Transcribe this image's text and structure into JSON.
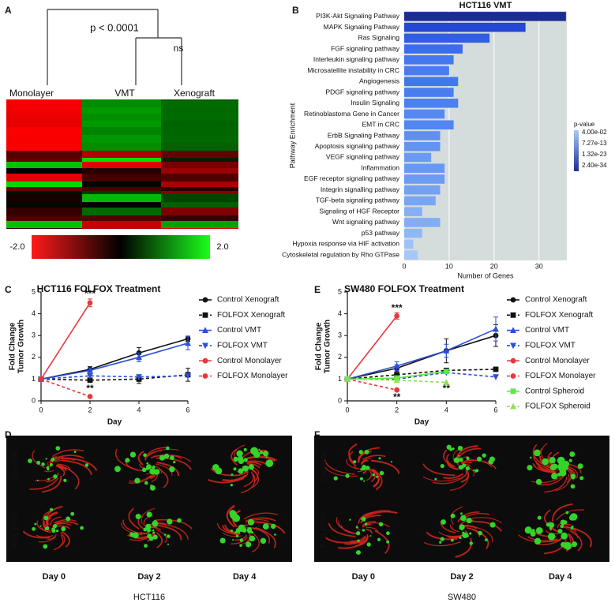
{
  "figure": {
    "panel_labels": [
      "A",
      "B",
      "C",
      "D",
      "E",
      "F"
    ],
    "heatmap": {
      "p_label": "p < 0.0001",
      "ns_label": "ns",
      "columns": [
        "Monolayer",
        "VMT",
        "Xenograft"
      ],
      "scale_min": "-2.0",
      "scale_max": "2.0"
    },
    "images": [
      {
        "rows": [
          "Control",
          "FOLFOX"
        ],
        "days": [
          "Day 0",
          "Day 2",
          "Day 4"
        ],
        "cell_line": "HCT116"
      },
      {
        "rows": [
          "Control",
          "FOLFOX"
        ],
        "days": [
          "Day 0",
          "Day 2",
          "Day 4"
        ],
        "cell_line": "SW480"
      }
    ]
  },
  "chart_data": [
    {
      "type": "barh",
      "title": "HCT116 VMT",
      "categories": [
        "PI3K-Akt Signaling Pathway",
        "MAPK Signaling Pathway",
        "Ras Signaling",
        "FGF signaling pathway",
        "Interleukin signaling pathway",
        "Microsatellite instability in CRC",
        "Angiogenesis",
        "PDGF signaling pathway",
        "Insulin Signaling",
        "Retinoblastoma Gene in Cancer",
        "EMT in CRC",
        "ErbB Signaling Pathway",
        "Apoptosis signaling pathway",
        "VEGF signaling pathway",
        "Inflammation",
        "EGF receptor signaling pathway",
        "Integrin signalling pathway",
        "TGF-beta signaling pathway",
        "Signaling of HGF Receptor",
        "Wnt signaling pathway",
        "p53 pathway",
        "Hypoxia response via HIF activation",
        "Cytoskeletal regulation by Rho GTPase"
      ],
      "values": [
        36,
        27,
        19,
        13,
        11,
        10,
        12,
        11,
        12,
        9,
        11,
        8,
        8,
        6,
        9,
        9,
        8,
        7,
        4,
        8,
        4,
        2,
        3
      ],
      "colors": [
        "#1c2c92",
        "#2447d6",
        "#2f5de4",
        "#3a6cec",
        "#4577ee",
        "#4a7cef",
        "#4377ee",
        "#4a7def",
        "#4d80ef",
        "#5588f0",
        "#5286f0",
        "#5e8ff1",
        "#6394f2",
        "#6a9af3",
        "#6899f2",
        "#6b9bf2",
        "#74a2f3",
        "#79a6f4",
        "#86b0f5",
        "#82adf4",
        "#8fb7f6",
        "#9ec1f7",
        "#a6c7f8"
      ],
      "xlim": [
        0,
        36.2
      ],
      "xticks": [
        0,
        10,
        20,
        30
      ],
      "xlabel": "Number of Genes",
      "ylabel": "Pathway Enrichment",
      "legend_title": "p-value",
      "legend_ticks": [
        "4.00e-02",
        "7.27e-13",
        "1.32e-23",
        "2.40e-34"
      ]
    },
    {
      "type": "line",
      "title": "HCT116 FOLFOX Treatment",
      "xlabel": "Day",
      "ylabel": [
        "Fold Change",
        "Tumor Growth"
      ],
      "xlim": [
        0,
        6
      ],
      "xticks": [
        0,
        2,
        4,
        6
      ],
      "ylim": [
        0,
        5
      ],
      "yticks": [
        0,
        1,
        2,
        3,
        4,
        5
      ],
      "series": [
        {
          "name": "Control Xenograft",
          "color": "#111111",
          "dash": false,
          "marker": "circle",
          "x": [
            0,
            2,
            4,
            6
          ],
          "values": [
            1,
            1.45,
            2.2,
            2.85
          ],
          "errors": [
            null,
            0.12,
            0.25,
            0.12
          ]
        },
        {
          "name": "FOLFOX Xenograft",
          "color": "#111111",
          "dash": true,
          "marker": "square",
          "x": [
            0,
            2,
            4,
            6
          ],
          "values": [
            1,
            0.95,
            1.0,
            1.2
          ],
          "errors": [
            null,
            0.08,
            0.2,
            0.3
          ]
        },
        {
          "name": "Control VMT",
          "color": "#2b4fd8",
          "dash": false,
          "marker": "triangle",
          "x": [
            0,
            2,
            4,
            6
          ],
          "values": [
            1,
            1.4,
            2.0,
            2.65
          ],
          "errors": [
            null,
            0.1,
            0.2,
            0.3
          ]
        },
        {
          "name": "FOLFOX VMT",
          "color": "#2b4fd8",
          "dash": true,
          "marker": "triangle-down",
          "x": [
            0,
            2,
            4,
            6
          ],
          "values": [
            1,
            1.15,
            1.1,
            1.15
          ],
          "errors": [
            null,
            null,
            null,
            null
          ]
        },
        {
          "name": "Control Monolayer",
          "color": "#e8383d",
          "dash": false,
          "marker": "circle",
          "x": [
            0,
            2
          ],
          "values": [
            1,
            4.5
          ],
          "errors": [
            null,
            0.18
          ]
        },
        {
          "name": "FOLFOX Monolayer",
          "color": "#e8383d",
          "dash": true,
          "marker": "circle",
          "x": [
            0,
            2
          ],
          "values": [
            1,
            0.2
          ],
          "errors": [
            null,
            null
          ]
        }
      ],
      "annotations": [
        {
          "text": "***",
          "x": 2,
          "y": 4.9
        },
        {
          "text": "**",
          "x": 2,
          "y": 0.55
        }
      ]
    },
    {
      "type": "line",
      "title": "SW480 FOLFOX Treatment",
      "xlabel": "Day",
      "ylabel": [
        "Fold Change",
        "Tumor Growth"
      ],
      "xlim": [
        0,
        6
      ],
      "xticks": [
        0,
        2,
        4,
        6
      ],
      "ylim": [
        0,
        5
      ],
      "yticks": [
        0,
        1,
        2,
        3,
        4,
        5
      ],
      "series": [
        {
          "name": "Control Xenograft",
          "color": "#111111",
          "dash": false,
          "marker": "circle",
          "x": [
            0,
            2,
            4,
            6
          ],
          "values": [
            1,
            1.5,
            2.3,
            3.0
          ],
          "errors": [
            null,
            0.15,
            0.55,
            0.5
          ]
        },
        {
          "name": "FOLFOX Xenograft",
          "color": "#111111",
          "dash": true,
          "marker": "square",
          "x": [
            0,
            2,
            4,
            6
          ],
          "values": [
            1,
            1.2,
            1.4,
            1.45
          ],
          "errors": [
            null,
            null,
            null,
            null
          ]
        },
        {
          "name": "Control VMT",
          "color": "#2b4fd8",
          "dash": false,
          "marker": "triangle",
          "x": [
            0,
            2,
            4,
            6
          ],
          "values": [
            1,
            1.6,
            2.3,
            3.3
          ],
          "errors": [
            null,
            0.2,
            0.3,
            0.55
          ]
        },
        {
          "name": "FOLFOX VMT",
          "color": "#2b4fd8",
          "dash": true,
          "marker": "triangle-down",
          "x": [
            0,
            2,
            4,
            6
          ],
          "values": [
            1,
            1.0,
            1.3,
            1.1
          ],
          "errors": [
            null,
            null,
            null,
            null
          ]
        },
        {
          "name": "Control Monolayer",
          "color": "#e8383d",
          "dash": false,
          "marker": "circle",
          "x": [
            0,
            2
          ],
          "values": [
            1,
            3.9
          ],
          "errors": [
            null,
            0.15
          ]
        },
        {
          "name": "FOLFOX Monolayer",
          "color": "#e8383d",
          "dash": true,
          "marker": "circle",
          "x": [
            0,
            2
          ],
          "values": [
            1,
            0.5
          ],
          "errors": [
            null,
            null
          ]
        },
        {
          "name": "Control Spheroid",
          "color": "#5ee84a",
          "dash": false,
          "marker": "square",
          "x": [
            0,
            2,
            4
          ],
          "values": [
            1,
            1.05,
            1.35
          ],
          "errors": [
            null,
            null,
            null
          ]
        },
        {
          "name": "FOLFOX Spheroid",
          "color": "#8ee05a",
          "dash": true,
          "marker": "triangle",
          "x": [
            0,
            2,
            4
          ],
          "values": [
            1,
            0.95,
            0.85
          ],
          "errors": [
            null,
            null,
            null
          ]
        }
      ],
      "annotations": [
        {
          "text": "***",
          "x": 2,
          "y": 4.25
        },
        {
          "text": "**",
          "x": 2,
          "y": 0.15
        },
        {
          "text": "**",
          "x": 4,
          "y": 0.55
        }
      ]
    }
  ]
}
